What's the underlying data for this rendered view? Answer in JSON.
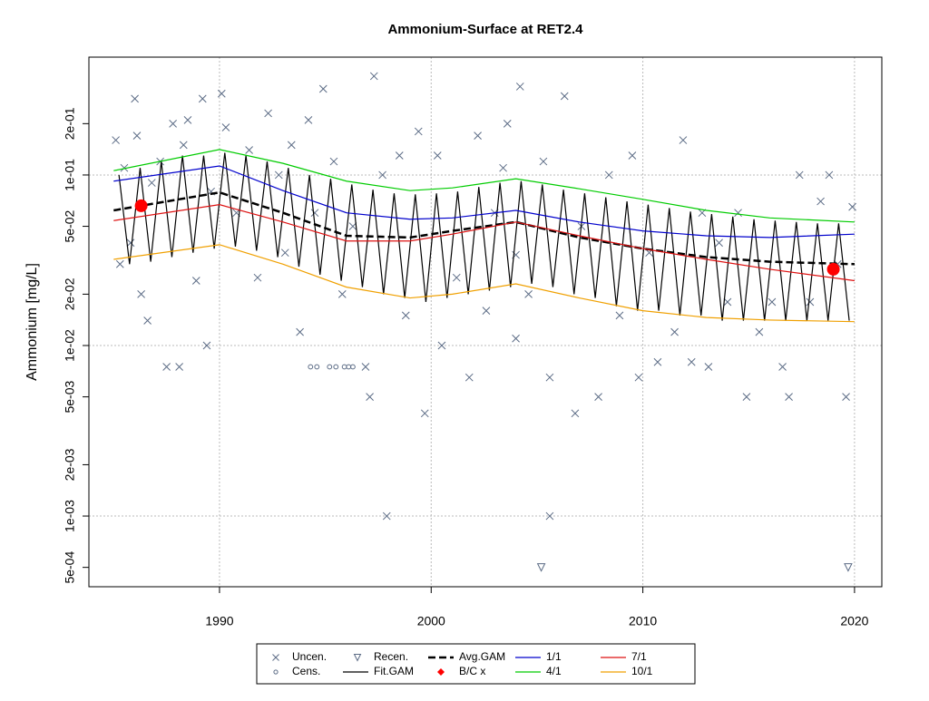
{
  "chart_data": {
    "type": "scatter",
    "title": "Ammonium-Surface at RET2.4",
    "y_label": "Ammonium [mg/L]",
    "log_y": true,
    "grid": true,
    "xlim": [
      1983.83,
      2021.29
    ],
    "ylim": [
      0.000385,
      0.491
    ],
    "xticks": [
      1990,
      2000,
      2010,
      2020
    ],
    "yticks": [
      {
        "value": 0.0005,
        "label": "5e-04"
      },
      {
        "value": 0.001,
        "label": "1e-03"
      },
      {
        "value": 0.002,
        "label": "2e-03"
      },
      {
        "value": 0.005,
        "label": "5e-03"
      },
      {
        "value": 0.01,
        "label": "1e-02"
      },
      {
        "value": 0.02,
        "label": "2e-02"
      },
      {
        "value": 0.05,
        "label": "5e-02"
      },
      {
        "value": 0.1,
        "label": "1e-01"
      },
      {
        "value": 0.2,
        "label": "2e-01"
      }
    ],
    "legend_position": "bottom",
    "series": [
      {
        "name": "Uncen.",
        "color": "#5b6b85",
        "marker": "x",
        "x": [
          1985.1,
          1985.3,
          1985.5,
          1985.8,
          1986.0,
          1986.1,
          1986.3,
          1986.6,
          1986.8,
          1987.2,
          1987.5,
          1987.8,
          1988.1,
          1988.3,
          1988.5,
          1988.9,
          1989.2,
          1989.4,
          1989.6,
          1990.1,
          1990.3,
          1990.8,
          1991.4,
          1991.8,
          1992.3,
          1992.8,
          1993.1,
          1993.4,
          1993.8,
          1994.2,
          1994.5,
          1994.9,
          1995.4,
          1995.8,
          1996.3,
          1996.9,
          1997.1,
          1997.3,
          1997.7,
          1997.9,
          1998.5,
          1998.8,
          1999.4,
          1999.7,
          2000.3,
          2000.5,
          2001.2,
          2001.8,
          2002.2,
          2002.6,
          2003.0,
          2003.4,
          2003.6,
          2004.0,
          2004.2,
          2004.6,
          2005.3,
          2005.6,
          2005.6,
          2006.3,
          2006.8,
          2007.1,
          2007.9,
          2008.4,
          2008.9,
          2009.5,
          2009.8,
          2010.3,
          2010.7,
          2011.5,
          2011.9,
          2012.3,
          2012.8,
          2013.1,
          2013.6,
          2014.0,
          2014.5,
          2004.0,
          2014.9,
          2015.5,
          2016.1,
          2016.6,
          2016.9,
          2017.4,
          2017.9,
          2018.4,
          2018.8,
          2019.2,
          2019.6,
          2019.9
        ],
        "values": [
          0.16,
          0.03,
          0.11,
          0.04,
          0.28,
          0.17,
          0.02,
          0.014,
          0.09,
          0.12,
          0.0075,
          0.2,
          0.0075,
          0.15,
          0.21,
          0.024,
          0.28,
          0.01,
          0.08,
          0.3,
          0.19,
          0.06,
          0.14,
          0.025,
          0.23,
          0.1,
          0.035,
          0.15,
          0.012,
          0.21,
          0.06,
          0.32,
          0.12,
          0.02,
          0.05,
          0.0075,
          0.005,
          0.38,
          0.1,
          0.001,
          0.13,
          0.015,
          0.18,
          0.004,
          0.13,
          0.01,
          0.025,
          0.0065,
          0.17,
          0.016,
          0.06,
          0.11,
          0.2,
          0.034,
          0.33,
          0.02,
          0.12,
          0.0065,
          0.001,
          0.29,
          0.004,
          0.05,
          0.005,
          0.1,
          0.015,
          0.13,
          0.0065,
          0.035,
          0.008,
          0.012,
          0.16,
          0.008,
          0.06,
          0.0075,
          0.04,
          0.018,
          0.06,
          0.011,
          0.005,
          0.012,
          0.018,
          0.0075,
          0.005,
          0.1,
          0.018,
          0.07,
          0.1,
          0.03,
          0.005,
          0.065
        ]
      },
      {
        "name": "Cens.",
        "color": "#5b6b85",
        "marker": "circle",
        "x": [
          1994.3,
          1994.6,
          1995.2,
          1995.5,
          1995.9,
          1996.1,
          1996.3
        ],
        "values": [
          0.0075,
          0.0075,
          0.0075,
          0.0075,
          0.0075,
          0.0075,
          0.0075
        ]
      },
      {
        "name": "Recen.",
        "color": "#5b6b85",
        "marker": "triangle",
        "x": [
          2005.2,
          2019.7
        ],
        "values": [
          0.0005,
          0.0005
        ]
      },
      {
        "name": "Fit.GAM",
        "color": "#000000",
        "line": "thin",
        "x": [
          1985.25,
          1985.75,
          1986.25,
          1986.75,
          1987.25,
          1987.75,
          1988.25,
          1988.75,
          1989.25,
          1989.75,
          1990.25,
          1990.75,
          1991.25,
          1991.75,
          1992.25,
          1992.75,
          1993.25,
          1993.75,
          1994.25,
          1994.75,
          1995.25,
          1995.75,
          1996.25,
          1996.75,
          1997.25,
          1997.75,
          1998.25,
          1998.75,
          1999.25,
          1999.75,
          2000.25,
          2000.75,
          2001.25,
          2001.75,
          2002.25,
          2002.75,
          2003.25,
          2003.75,
          2004.25,
          2004.75,
          2005.25,
          2005.75,
          2006.25,
          2006.75,
          2007.25,
          2007.75,
          2008.25,
          2008.75,
          2009.25,
          2009.75,
          2010.25,
          2010.75,
          2011.25,
          2011.75,
          2012.25,
          2012.75,
          2013.25,
          2013.75,
          2014.25,
          2014.75,
          2015.25,
          2015.75,
          2016.25,
          2016.75,
          2017.25,
          2017.75,
          2018.25,
          2018.75,
          2019.25,
          2019.75
        ],
        "values": [
          0.1,
          0.03,
          0.11,
          0.031,
          0.12,
          0.033,
          0.13,
          0.035,
          0.13,
          0.037,
          0.135,
          0.038,
          0.13,
          0.036,
          0.12,
          0.033,
          0.11,
          0.029,
          0.1,
          0.026,
          0.095,
          0.024,
          0.088,
          0.022,
          0.082,
          0.02,
          0.078,
          0.019,
          0.077,
          0.018,
          0.078,
          0.019,
          0.08,
          0.02,
          0.085,
          0.021,
          0.09,
          0.022,
          0.092,
          0.023,
          0.088,
          0.022,
          0.082,
          0.02,
          0.078,
          0.019,
          0.074,
          0.017,
          0.07,
          0.016,
          0.067,
          0.016,
          0.064,
          0.015,
          0.061,
          0.015,
          0.059,
          0.014,
          0.057,
          0.014,
          0.055,
          0.014,
          0.054,
          0.014,
          0.053,
          0.014,
          0.052,
          0.014,
          0.052,
          0.014
        ]
      },
      {
        "name": "Avg.GAM",
        "color": "#000000",
        "line": "dashed",
        "x": [
          1985,
          1990,
          1993,
          1996,
          1999,
          2001,
          2004,
          2007,
          2010,
          2013,
          2016,
          2020
        ],
        "values": [
          0.062,
          0.079,
          0.06,
          0.044,
          0.043,
          0.047,
          0.053,
          0.043,
          0.037,
          0.033,
          0.031,
          0.03
        ]
      },
      {
        "name": "B/C x",
        "color": "#ff0000",
        "marker": "dot",
        "x": [
          1986.3,
          2019.0
        ],
        "values": [
          0.066,
          0.028
        ]
      },
      {
        "name": "1/1",
        "color": "#0000cc",
        "line": "solid",
        "x": [
          1985,
          1990,
          1993,
          1996,
          1999,
          2001,
          2004,
          2007,
          2010,
          2013,
          2016,
          2020
        ],
        "values": [
          0.092,
          0.113,
          0.081,
          0.06,
          0.055,
          0.056,
          0.062,
          0.053,
          0.047,
          0.044,
          0.043,
          0.045
        ]
      },
      {
        "name": "4/1",
        "color": "#00cc00",
        "line": "solid",
        "x": [
          1985,
          1990,
          1993,
          1996,
          1999,
          2001,
          2004,
          2007,
          2010,
          2013,
          2016,
          2020
        ],
        "values": [
          0.106,
          0.141,
          0.117,
          0.092,
          0.081,
          0.084,
          0.095,
          0.083,
          0.072,
          0.062,
          0.056,
          0.053
        ]
      },
      {
        "name": "7/1",
        "color": "#dd1111",
        "line": "solid",
        "x": [
          1985,
          1990,
          1993,
          1996,
          1999,
          2001,
          2004,
          2007,
          2010,
          2013,
          2016,
          2020
        ],
        "values": [
          0.054,
          0.067,
          0.053,
          0.041,
          0.041,
          0.045,
          0.053,
          0.044,
          0.037,
          0.032,
          0.028,
          0.024
        ]
      },
      {
        "name": "10/1",
        "color": "#f0a000",
        "line": "solid",
        "x": [
          1985,
          1990,
          1993,
          1996,
          1999,
          2001,
          2004,
          2007,
          2010,
          2013,
          2016,
          2020
        ],
        "values": [
          0.032,
          0.039,
          0.03,
          0.022,
          0.019,
          0.02,
          0.023,
          0.019,
          0.016,
          0.0146,
          0.0141,
          0.0138
        ]
      }
    ]
  }
}
